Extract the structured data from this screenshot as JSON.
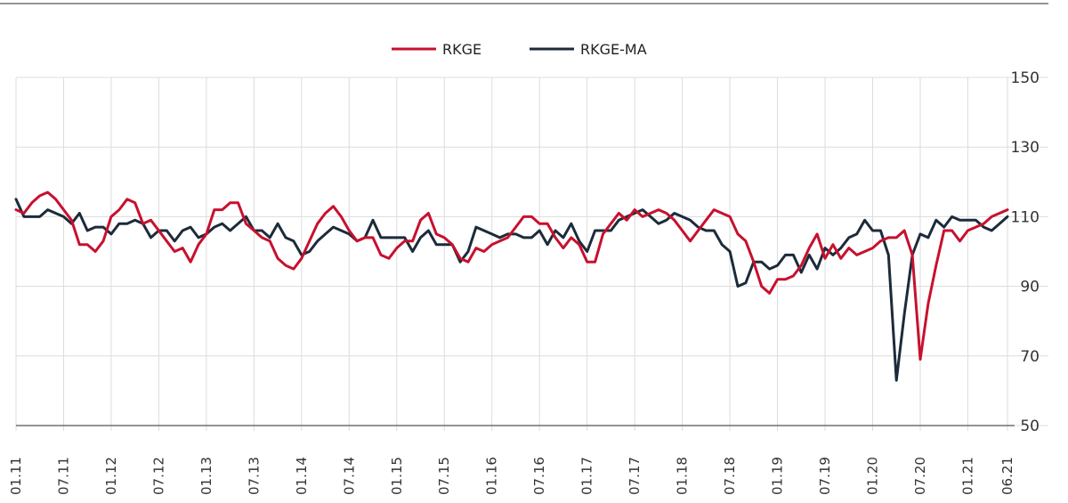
{
  "chart_data": {
    "type": "line",
    "title": "",
    "xlabel": "",
    "ylabel": "",
    "ylim": [
      50,
      150
    ],
    "y_ticks": [
      50,
      70,
      90,
      110,
      130,
      150
    ],
    "y_axis_side": "right",
    "grid": true,
    "legend_position": "top-center",
    "x_range": [
      "2011-01",
      "2021-06"
    ],
    "x_tick_labels": [
      "01.11",
      "07.11",
      "01.12",
      "07.12",
      "01.13",
      "07.13",
      "01.14",
      "07.14",
      "01.15",
      "07.15",
      "01.16",
      "07.16",
      "01.17",
      "07.17",
      "01.18",
      "07.18",
      "01.19",
      "07.19",
      "01.20",
      "07.20",
      "01.21",
      "06.21"
    ],
    "x_ticks_month_index": [
      0,
      6,
      12,
      18,
      24,
      30,
      36,
      42,
      48,
      54,
      60,
      66,
      72,
      78,
      84,
      90,
      96,
      102,
      108,
      114,
      120,
      125
    ],
    "series": [
      {
        "name": "RKGE",
        "color": "#c8102e",
        "values": [
          112,
          111,
          114,
          116,
          117,
          115,
          112,
          109,
          102,
          102,
          100,
          103,
          110,
          112,
          115,
          114,
          108,
          109,
          106,
          103,
          100,
          101,
          97,
          102,
          105,
          112,
          112,
          114,
          114,
          108,
          106,
          104,
          103,
          98,
          96,
          95,
          98,
          103,
          108,
          111,
          113,
          110,
          106,
          103,
          104,
          104,
          99,
          98,
          101,
          103,
          103,
          109,
          111,
          105,
          104,
          102,
          98,
          97,
          101,
          100,
          102,
          103,
          104,
          107,
          110,
          110,
          108,
          108,
          104,
          101,
          104,
          102,
          97,
          97,
          105,
          108,
          111,
          109,
          112,
          110,
          111,
          112,
          111,
          109,
          106,
          103,
          106,
          109,
          112,
          111,
          110,
          105,
          103,
          97,
          90,
          88,
          92,
          92,
          93,
          96,
          101,
          105,
          98,
          102,
          98,
          101,
          99,
          100,
          101,
          103,
          104,
          104,
          106,
          99,
          69,
          85,
          96,
          106,
          106,
          103,
          106,
          107,
          108,
          110,
          111,
          112
        ]
      },
      {
        "name": "RKGE-MA",
        "color": "#1c2b3a",
        "values": [
          115,
          110,
          110,
          110,
          112,
          111,
          110,
          108,
          111,
          106,
          107,
          107,
          105,
          108,
          108,
          109,
          108,
          104,
          106,
          106,
          103,
          106,
          107,
          104,
          105,
          107,
          108,
          106,
          108,
          110,
          106,
          106,
          104,
          108,
          104,
          103,
          99,
          100,
          103,
          105,
          107,
          106,
          105,
          103,
          104,
          109,
          104,
          104,
          104,
          104,
          100,
          104,
          106,
          102,
          102,
          102,
          97,
          100,
          107,
          106,
          105,
          104,
          105,
          105,
          104,
          104,
          106,
          102,
          106,
          104,
          108,
          103,
          100,
          106,
          106,
          106,
          109,
          110,
          111,
          112,
          110,
          108,
          109,
          111,
          110,
          109,
          107,
          106,
          106,
          102,
          100,
          90,
          91,
          97,
          97,
          95,
          96,
          99,
          99,
          94,
          99,
          95,
          101,
          99,
          101,
          104,
          105,
          109,
          106,
          106,
          99,
          63,
          82,
          99,
          105,
          104,
          109,
          107,
          110,
          109,
          109,
          109,
          107,
          106,
          108,
          110
        ]
      }
    ]
  }
}
